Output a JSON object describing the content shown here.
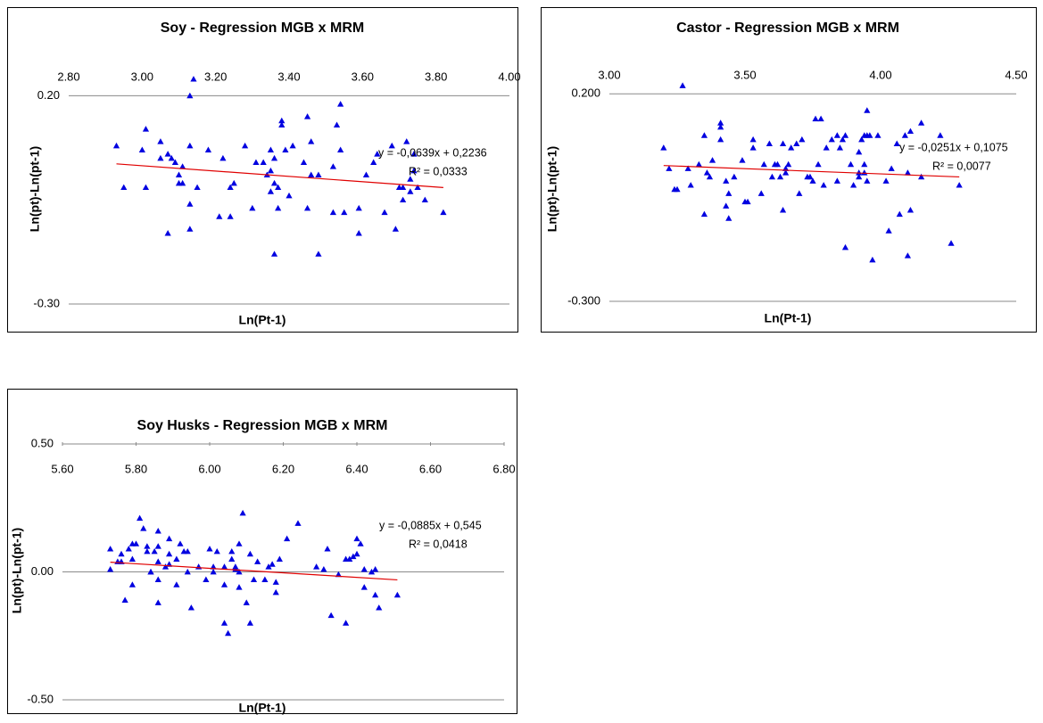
{
  "chart_data": [
    {
      "type": "scatter",
      "title": "Soy - Regression MGB x MRM",
      "x_label": "Ln(Pt-1)",
      "y_label": "Ln(pt)-Ln(pt-1)",
      "xlim": [
        2.8,
        4.0
      ],
      "ylim": [
        -0.3,
        0.25
      ],
      "xticks": [
        {
          "value": 2.8,
          "label": "2.80"
        },
        {
          "value": 3.0,
          "label": "3.00"
        },
        {
          "value": 3.2,
          "label": "3.20"
        },
        {
          "value": 3.4,
          "label": "3.40"
        },
        {
          "value": 3.6,
          "label": "3.60"
        },
        {
          "value": 3.8,
          "label": "3.80"
        },
        {
          "value": 4.0,
          "label": "4.00"
        }
      ],
      "yticks": [
        {
          "value": 0.2,
          "label": "0.20"
        },
        {
          "value": -0.3,
          "label": "-0.30"
        }
      ],
      "grid": true,
      "x": [
        2.93,
        2.95,
        3.0,
        3.01,
        3.01,
        3.05,
        3.05,
        3.07,
        3.07,
        3.08,
        3.09,
        3.1,
        3.1,
        3.11,
        3.11,
        3.13,
        3.13,
        3.13,
        3.13,
        3.14,
        3.15,
        3.18,
        3.21,
        3.22,
        3.24,
        3.24,
        3.25,
        3.28,
        3.3,
        3.31,
        3.33,
        3.34,
        3.35,
        3.35,
        3.35,
        3.36,
        3.36,
        3.37,
        3.37,
        3.36,
        3.38,
        3.38,
        3.39,
        3.4,
        3.41,
        3.44,
        3.45,
        3.45,
        3.46,
        3.46,
        3.48,
        3.48,
        3.52,
        3.52,
        3.54,
        3.53,
        3.54,
        3.55,
        3.59,
        3.59,
        3.61,
        3.63,
        3.64,
        3.66,
        3.68,
        3.69,
        3.7,
        3.71,
        3.71,
        3.72,
        3.73,
        3.73,
        3.74,
        3.74,
        3.75,
        3.77,
        3.82
      ],
      "series": [
        {
          "color": "#0000e0",
          "values": [
            0.08,
            -0.02,
            0.07,
            0.12,
            -0.02,
            0.05,
            0.09,
            -0.13,
            0.06,
            0.05,
            0.04,
            0.01,
            -0.01,
            0.03,
            -0.01,
            -0.12,
            -0.06,
            0.2,
            0.08,
            0.24,
            -0.02,
            0.07,
            -0.09,
            0.05,
            -0.09,
            -0.02,
            -0.01,
            0.08,
            -0.07,
            0.04,
            0.04,
            0.01,
            -0.03,
            0.07,
            0.02,
            -0.01,
            0.05,
            -0.02,
            -0.07,
            -0.18,
            0.13,
            0.14,
            0.07,
            -0.04,
            0.08,
            0.04,
            -0.07,
            0.15,
            0.09,
            0.01,
            0.01,
            -0.18,
            0.03,
            -0.08,
            0.18,
            0.13,
            0.07,
            -0.08,
            -0.07,
            -0.13,
            0.01,
            0.04,
            0.06,
            -0.08,
            0.08,
            -0.12,
            -0.02,
            -0.05,
            -0.02,
            0.09,
            0,
            -0.03,
            0.02,
            0.06,
            -0.02,
            -0.05,
            -0.08
          ]
        }
      ],
      "trendline": {
        "color": "#e00000",
        "equation": "y = -0,0639x + 0,2236",
        "r_squared": "R² = 0,0333",
        "slope": -0.0639,
        "intercept": 0.2236
      }
    },
    {
      "type": "scatter",
      "title": "Castor - Regression MGB x MRM",
      "x_label": "Ln(Pt-1)",
      "y_label": "Ln(pt)-Ln(pt-1)",
      "xlim": [
        3.0,
        4.5
      ],
      "ylim": [
        -0.3,
        0.25
      ],
      "xticks": [
        {
          "value": 3.0,
          "label": "3.00"
        },
        {
          "value": 3.5,
          "label": "3.50"
        },
        {
          "value": 4.0,
          "label": "4.00"
        },
        {
          "value": 4.5,
          "label": "4.50"
        }
      ],
      "yticks": [
        {
          "value": 0.2,
          "label": "0.200"
        },
        {
          "value": -0.3,
          "label": "-0.300"
        }
      ],
      "grid": true,
      "x": [
        3.2,
        3.22,
        3.24,
        3.25,
        3.27,
        3.29,
        3.3,
        3.33,
        3.35,
        3.35,
        3.36,
        3.37,
        3.38,
        3.41,
        3.41,
        3.41,
        3.43,
        3.43,
        3.44,
        3.44,
        3.46,
        3.49,
        3.5,
        3.51,
        3.53,
        3.53,
        3.56,
        3.57,
        3.59,
        3.6,
        3.61,
        3.62,
        3.63,
        3.64,
        3.64,
        3.65,
        3.65,
        3.66,
        3.67,
        3.69,
        3.7,
        3.71,
        3.73,
        3.74,
        3.75,
        3.76,
        3.77,
        3.78,
        3.79,
        3.8,
        3.82,
        3.84,
        3.84,
        3.85,
        3.86,
        3.87,
        3.87,
        3.89,
        3.9,
        3.92,
        3.92,
        3.92,
        3.93,
        3.94,
        3.94,
        3.94,
        3.95,
        3.95,
        3.95,
        3.96,
        3.97,
        3.99,
        4.02,
        4.03,
        4.04,
        4.06,
        4.07,
        4.09,
        4.1,
        4.1,
        4.11,
        4.11,
        4.15,
        4.15,
        4.22,
        4.26,
        4.29
      ],
      "series": [
        {
          "color": "#0000e0",
          "values": [
            0.07,
            0.02,
            -0.03,
            -0.03,
            0.22,
            0.02,
            -0.02,
            0.03,
            0.1,
            -0.09,
            0.01,
            0,
            0.04,
            0.12,
            0.09,
            0.13,
            -0.07,
            -0.01,
            -0.04,
            -0.1,
            0,
            0.04,
            -0.06,
            -0.06,
            0.07,
            0.09,
            -0.04,
            0.03,
            0.08,
            0,
            0.03,
            0.03,
            0,
            0.08,
            -0.08,
            0.02,
            0.01,
            0.03,
            0.07,
            0.08,
            -0.04,
            0.09,
            0,
            0,
            -0.01,
            0.14,
            0.03,
            0.14,
            -0.02,
            0.07,
            0.09,
            0.1,
            -0.01,
            0.07,
            0.09,
            -0.17,
            0.1,
            0.03,
            -0.02,
            0.01,
            0.06,
            0,
            0.09,
            0.03,
            0.01,
            0.1,
            0.16,
            -0.01,
            0.1,
            0.1,
            -0.2,
            0.1,
            -0.01,
            -0.13,
            0.02,
            0.08,
            -0.09,
            0.1,
            -0.19,
            0.01,
            0.11,
            -0.08,
            0,
            0.13,
            0.1,
            -0.16,
            -0.02
          ]
        }
      ],
      "trendline": {
        "color": "#e00000",
        "equation": "y = -0,0251x + 0,1075",
        "r_squared": "R² = 0,0077",
        "slope": -0.0251,
        "intercept": 0.1075
      }
    },
    {
      "type": "scatter",
      "title": "Soy Husks - Regression MGB x MRM",
      "x_label": "Ln(Pt-1)",
      "y_label": "Ln(pt)-Ln(pt-1)",
      "xlim": [
        5.6,
        6.8
      ],
      "ylim": [
        -0.5,
        0.5
      ],
      "xticks": [
        {
          "value": 5.6,
          "label": "5.60"
        },
        {
          "value": 5.8,
          "label": "5.80"
        },
        {
          "value": 6.0,
          "label": "6.00"
        },
        {
          "value": 6.2,
          "label": "6.20"
        },
        {
          "value": 6.4,
          "label": "6.40"
        },
        {
          "value": 6.6,
          "label": "6.60"
        },
        {
          "value": 6.8,
          "label": "6.80"
        }
      ],
      "yticks": [
        {
          "value": 0.5,
          "label": "0.50"
        },
        {
          "value": 0,
          "label": "0.00"
        },
        {
          "value": -0.5,
          "label": "-0.50"
        }
      ],
      "grid": true,
      "x": [
        5.73,
        5.73,
        5.75,
        5.76,
        5.76,
        5.77,
        5.78,
        5.79,
        5.79,
        5.79,
        5.8,
        5.81,
        5.82,
        5.83,
        5.83,
        5.84,
        5.84,
        5.85,
        5.86,
        5.86,
        5.86,
        5.86,
        5.86,
        5.88,
        5.89,
        5.89,
        5.89,
        5.91,
        5.91,
        5.92,
        5.93,
        5.94,
        5.94,
        5.95,
        5.97,
        5.99,
        6.0,
        6.01,
        6.01,
        6.02,
        6.04,
        6.04,
        6.04,
        6.05,
        6.06,
        6.06,
        6.07,
        6.07,
        6.08,
        6.08,
        6.08,
        6.09,
        6.1,
        6.11,
        6.11,
        6.12,
        6.13,
        6.15,
        6.16,
        6.17,
        6.18,
        6.18,
        6.19,
        6.21,
        6.24,
        6.29,
        6.31,
        6.32,
        6.33,
        6.35,
        6.37,
        6.37,
        6.38,
        6.39,
        6.4,
        6.4,
        6.41,
        6.42,
        6.42,
        6.44,
        6.45,
        6.45,
        6.46,
        6.51
      ],
      "series": [
        {
          "color": "#0000e0",
          "values": [
            0.09,
            0.01,
            0.04,
            0.07,
            0.04,
            -0.11,
            0.09,
            0.11,
            0.05,
            -0.05,
            0.11,
            0.21,
            0.17,
            0.08,
            0.1,
            0,
            0,
            0.08,
            0.1,
            0.16,
            0.04,
            -0.12,
            -0.03,
            0.02,
            0.03,
            0.13,
            0.07,
            -0.05,
            0.05,
            0.11,
            0.08,
            0.08,
            0,
            -0.14,
            0.02,
            -0.03,
            0.09,
            0,
            0.02,
            0.08,
            0.02,
            -0.2,
            -0.05,
            -0.24,
            0.05,
            0.08,
            0.02,
            0.01,
            0,
            0.11,
            -0.06,
            0.23,
            -0.12,
            -0.2,
            0.07,
            -0.03,
            0.04,
            -0.03,
            0.02,
            0.03,
            -0.04,
            -0.08,
            0.05,
            0.13,
            0.19,
            0.02,
            0.01,
            0.09,
            -0.17,
            -0.01,
            -0.2,
            0.05,
            0.05,
            0.06,
            0.07,
            0.13,
            0.11,
            -0.06,
            0.01,
            0,
            -0.09,
            0.01,
            -0.14,
            -0.09
          ]
        }
      ],
      "trendline": {
        "color": "#e00000",
        "equation": "y = -0,0885x + 0,545",
        "r_squared": "R² = 0,0418",
        "slope": -0.0885,
        "intercept": 0.545
      }
    }
  ]
}
